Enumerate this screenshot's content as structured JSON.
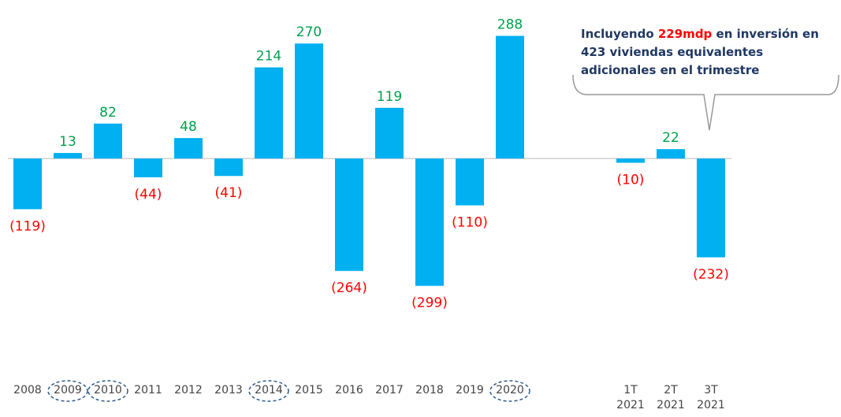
{
  "chart_data": {
    "type": "bar",
    "categories": [
      "2008",
      "2009",
      "2010",
      "2011",
      "2012",
      "2013",
      "2014",
      "2015",
      "2016",
      "2017",
      "2018",
      "2019",
      "2020",
      null,
      null,
      "1T 2021",
      "2T 2021",
      "3T 2021"
    ],
    "values": [
      -119,
      13,
      82,
      -44,
      48,
      -41,
      214,
      270,
      -264,
      119,
      -299,
      -110,
      288,
      null,
      null,
      -10,
      22,
      -232
    ],
    "value_labels": [
      "(119)",
      "13",
      "82",
      "(44)",
      "48",
      "(41)",
      "214",
      "270",
      "(264)",
      "119",
      "(299)",
      "(110)",
      "288",
      null,
      null,
      "(10)",
      "22",
      "(232)"
    ],
    "color": "#00b0f0",
    "label_colors": {
      "positive": "#00a14b",
      "negative": "#ff0000"
    },
    "ylim": [
      -370,
      350
    ],
    "circled": [
      1,
      2,
      6,
      12
    ],
    "annotation": [
      {
        "text": "Incluyendo ",
        "color": "#1f3864"
      },
      {
        "text": "229mdp",
        "color": "#ff0000"
      },
      {
        "text": " en inversión en 423 viviendas equivalentes adicionales en el trimestre",
        "color": "#1f3864"
      }
    ]
  }
}
